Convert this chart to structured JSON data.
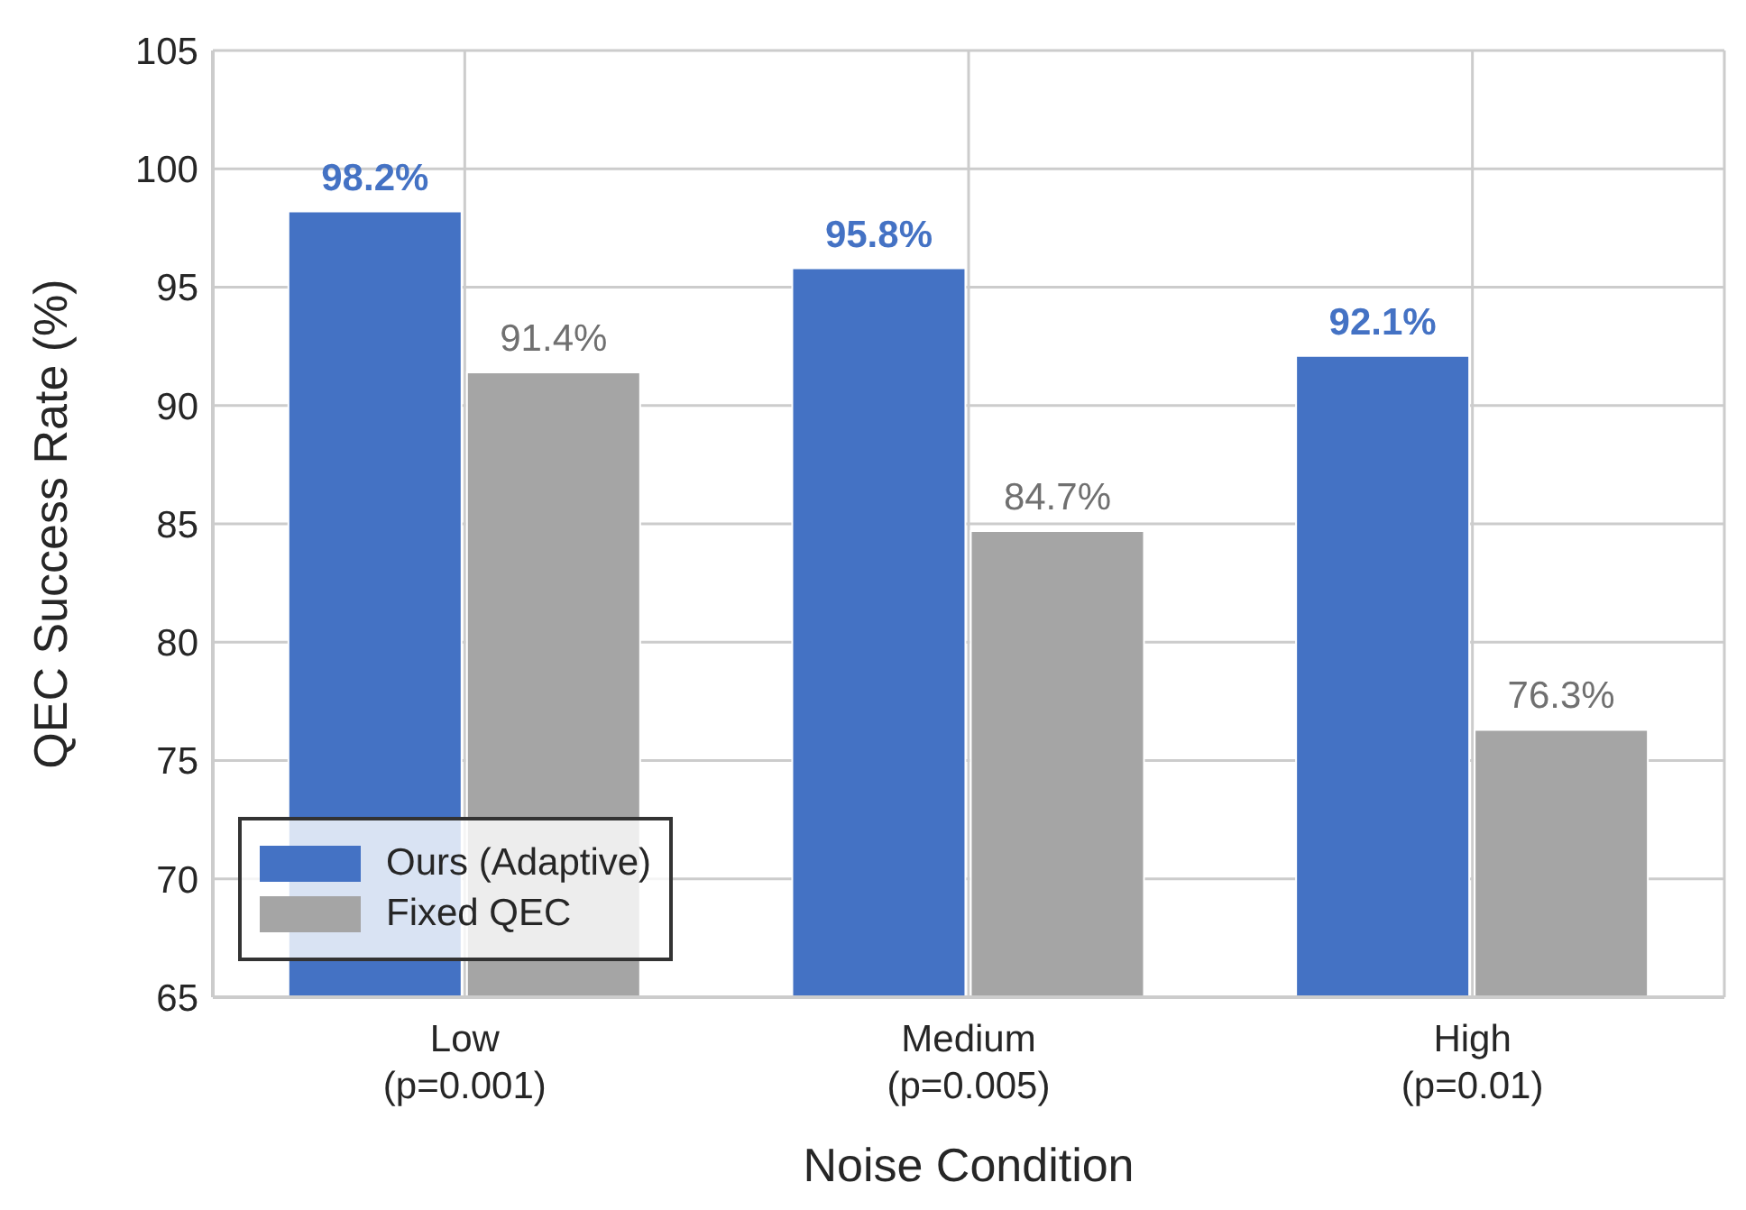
{
  "chart_data": {
    "type": "bar",
    "xlabel": "Noise Condition",
    "ylabel": "QEC Success Rate (%)",
    "categories": [
      "Low\n(p=0.001)",
      "Medium\n(p=0.005)",
      "High\n(p=0.01)"
    ],
    "series": [
      {
        "name": "Ours (Adaptive)",
        "color": "#4472c4",
        "values": [
          98.2,
          95.8,
          92.1
        ],
        "value_labels": [
          "98.2%",
          "95.8%",
          "92.1%"
        ]
      },
      {
        "name": "Fixed QEC",
        "color": "#a5a5a5",
        "values": [
          91.4,
          84.7,
          76.3
        ],
        "value_labels": [
          "91.4%",
          "84.7%",
          "76.3%"
        ]
      }
    ],
    "ylim": [
      65,
      105
    ],
    "yticks": [
      65,
      70,
      75,
      80,
      85,
      90,
      95,
      100,
      105
    ],
    "grid": true,
    "legend": "bottom left"
  }
}
